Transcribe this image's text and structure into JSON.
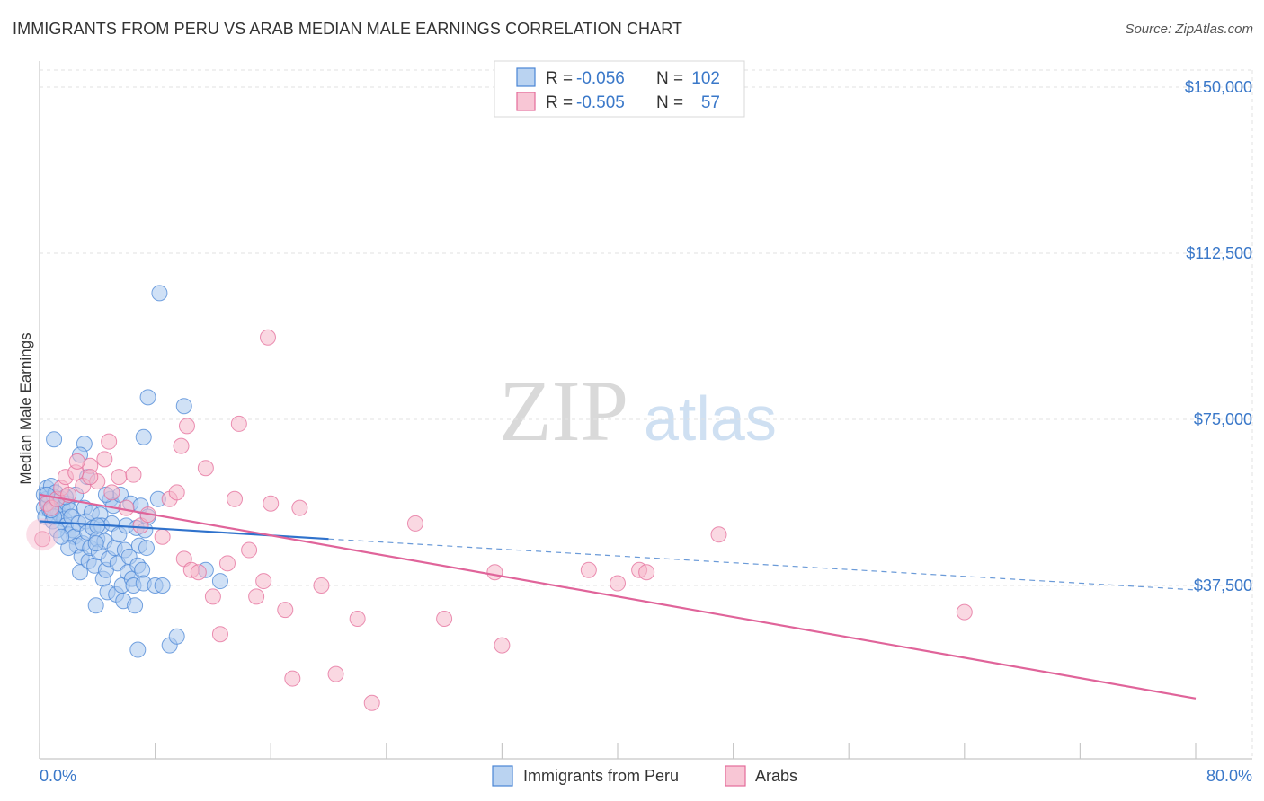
{
  "title": "IMMIGRANTS FROM PERU VS ARAB MEDIAN MALE EARNINGS CORRELATION CHART",
  "source": "Source: ZipAtlas.com",
  "watermark": {
    "part1": "ZIP",
    "part2": "atlas"
  },
  "legend": {
    "rows": [
      {
        "r_label": "R =",
        "r_value": "-0.056",
        "n_label": "N =",
        "n_value": "102",
        "color": "#a9c8ee"
      },
      {
        "r_label": "R =",
        "r_value": "-0.505",
        "n_label": "N =",
        "n_value": "57",
        "color": "#f6b8cb"
      }
    ]
  },
  "bottom_legend": [
    {
      "label": "Immigrants from Peru",
      "color": "#a9c8ee"
    },
    {
      "label": "Arabs",
      "color": "#f6b8cb"
    }
  ],
  "chart_data": {
    "type": "scatter",
    "title": "IMMIGRANTS FROM PERU VS ARAB MEDIAN MALE EARNINGS CORRELATION CHART",
    "xlabel": "",
    "ylabel": "Median Male Earnings",
    "xlim": [
      0,
      80
    ],
    "ylim": [
      0,
      155000
    ],
    "x_tick_labels": [
      "0.0%",
      "80.0%"
    ],
    "y_ticks": [
      37500,
      75000,
      112500,
      150000
    ],
    "y_tick_labels": [
      "$37,500",
      "$75,000",
      "$112,500",
      "$150,000"
    ],
    "grid": true,
    "series": [
      {
        "name": "Immigrants from Peru",
        "color": "#4a86d6",
        "fill": "#a9c8ee",
        "trend": {
          "x": [
            0,
            20
          ],
          "y": [
            52000,
            48000
          ],
          "dashed_to": [
            80,
            36500
          ]
        },
        "points": [
          [
            0.3,
            58000
          ],
          [
            0.3,
            55000
          ],
          [
            0.4,
            53000
          ],
          [
            0.5,
            57000
          ],
          [
            0.5,
            59500
          ],
          [
            0.6,
            56000
          ],
          [
            0.7,
            54500
          ],
          [
            0.8,
            60000
          ],
          [
            0.9,
            52000
          ],
          [
            1.0,
            57500
          ],
          [
            1.0,
            55500
          ],
          [
            1.1,
            58500
          ],
          [
            1.2,
            56500
          ],
          [
            1.3,
            54000
          ],
          [
            1.4,
            53500
          ],
          [
            1.5,
            57000
          ],
          [
            1.6,
            55000
          ],
          [
            1.7,
            52500
          ],
          [
            1.8,
            51000
          ],
          [
            1.9,
            56000
          ],
          [
            2.0,
            49000
          ],
          [
            2.1,
            54500
          ],
          [
            2.2,
            53000
          ],
          [
            2.3,
            50000
          ],
          [
            2.4,
            48500
          ],
          [
            2.5,
            58000
          ],
          [
            2.6,
            46500
          ],
          [
            2.7,
            51500
          ],
          [
            2.8,
            40500
          ],
          [
            2.9,
            44000
          ],
          [
            3.0,
            47000
          ],
          [
            3.1,
            55000
          ],
          [
            3.2,
            52000
          ],
          [
            3.3,
            49500
          ],
          [
            3.4,
            43000
          ],
          [
            3.5,
            46000
          ],
          [
            3.6,
            54000
          ],
          [
            3.7,
            50500
          ],
          [
            3.8,
            42000
          ],
          [
            3.9,
            33000
          ],
          [
            4.0,
            48000
          ],
          [
            4.1,
            45000
          ],
          [
            4.2,
            53500
          ],
          [
            4.3,
            51000
          ],
          [
            4.4,
            39000
          ],
          [
            4.5,
            47500
          ],
          [
            4.6,
            41000
          ],
          [
            4.7,
            36000
          ],
          [
            4.8,
            43500
          ],
          [
            4.9,
            57000
          ],
          [
            5.0,
            51500
          ],
          [
            5.1,
            55500
          ],
          [
            5.2,
            46000
          ],
          [
            5.3,
            35500
          ],
          [
            5.4,
            42500
          ],
          [
            5.5,
            49000
          ],
          [
            5.6,
            58000
          ],
          [
            5.7,
            37500
          ],
          [
            5.8,
            34000
          ],
          [
            5.9,
            45500
          ],
          [
            6.0,
            51000
          ],
          [
            6.1,
            40500
          ],
          [
            6.2,
            44000
          ],
          [
            6.3,
            56000
          ],
          [
            6.4,
            39000
          ],
          [
            6.5,
            37500
          ],
          [
            6.6,
            33000
          ],
          [
            6.7,
            50500
          ],
          [
            6.8,
            42000
          ],
          [
            6.9,
            46500
          ],
          [
            7.0,
            55500
          ],
          [
            7.1,
            41000
          ],
          [
            7.2,
            38000
          ],
          [
            7.3,
            50000
          ],
          [
            7.4,
            46000
          ],
          [
            7.5,
            53000
          ],
          [
            8.0,
            37500
          ],
          [
            8.5,
            37500
          ],
          [
            9.0,
            24000
          ],
          [
            9.5,
            26000
          ],
          [
            10.0,
            78000
          ],
          [
            12.5,
            38500
          ],
          [
            7.5,
            80000
          ],
          [
            8.3,
            103500
          ],
          [
            8.2,
            57000
          ],
          [
            7.2,
            71000
          ],
          [
            1.0,
            70500
          ],
          [
            3.3,
            62000
          ],
          [
            3.1,
            69500
          ],
          [
            2.8,
            67000
          ],
          [
            1.8,
            57500
          ],
          [
            0.5,
            58000
          ],
          [
            1.0,
            53000
          ],
          [
            1.2,
            50000
          ],
          [
            2.0,
            46000
          ],
          [
            0.8,
            54500
          ],
          [
            1.5,
            48500
          ],
          [
            4.0,
            51000
          ],
          [
            6.8,
            23000
          ],
          [
            4.6,
            58000
          ],
          [
            3.9,
            47000
          ],
          [
            11.5,
            41000
          ]
        ]
      },
      {
        "name": "Arabs",
        "color": "#e46c9a",
        "fill": "#f6b8cb",
        "trend": {
          "x": [
            0,
            80
          ],
          "y": [
            58000,
            12000
          ]
        },
        "points": [
          [
            0.2,
            48000
          ],
          [
            0.5,
            56000
          ],
          [
            0.8,
            55000
          ],
          [
            1.2,
            57000
          ],
          [
            1.5,
            59500
          ],
          [
            1.8,
            62000
          ],
          [
            2.0,
            58000
          ],
          [
            2.5,
            63000
          ],
          [
            3.0,
            60000
          ],
          [
            3.5,
            64500
          ],
          [
            4.0,
            61000
          ],
          [
            4.5,
            66000
          ],
          [
            5.0,
            58500
          ],
          [
            5.5,
            62000
          ],
          [
            6.0,
            55000
          ],
          [
            6.5,
            62500
          ],
          [
            7.0,
            51000
          ],
          [
            7.5,
            53500
          ],
          [
            8.5,
            48500
          ],
          [
            9.0,
            57000
          ],
          [
            9.5,
            58500
          ],
          [
            10.0,
            43500
          ],
          [
            10.5,
            41000
          ],
          [
            11.0,
            40500
          ],
          [
            11.5,
            64000
          ],
          [
            12.0,
            35000
          ],
          [
            12.5,
            26500
          ],
          [
            13.0,
            42500
          ],
          [
            13.5,
            57000
          ],
          [
            14.5,
            45500
          ],
          [
            15.0,
            35000
          ],
          [
            15.5,
            38500
          ],
          [
            16.0,
            56000
          ],
          [
            17.0,
            32000
          ],
          [
            17.5,
            16500
          ],
          [
            18.0,
            55000
          ],
          [
            19.5,
            37500
          ],
          [
            20.5,
            17500
          ],
          [
            22.0,
            30000
          ],
          [
            23.0,
            11000
          ],
          [
            26.0,
            51500
          ],
          [
            28.0,
            30000
          ],
          [
            31.5,
            40500
          ],
          [
            32.0,
            24000
          ],
          [
            38.0,
            41000
          ],
          [
            40.0,
            38000
          ],
          [
            41.5,
            41000
          ],
          [
            42.0,
            40500
          ],
          [
            47.0,
            49000
          ],
          [
            64.0,
            31500
          ],
          [
            4.8,
            70000
          ],
          [
            10.2,
            73500
          ],
          [
            13.8,
            74000
          ],
          [
            15.8,
            93500
          ],
          [
            9.8,
            69000
          ],
          [
            2.6,
            65500
          ],
          [
            3.5,
            62000
          ]
        ]
      }
    ]
  }
}
